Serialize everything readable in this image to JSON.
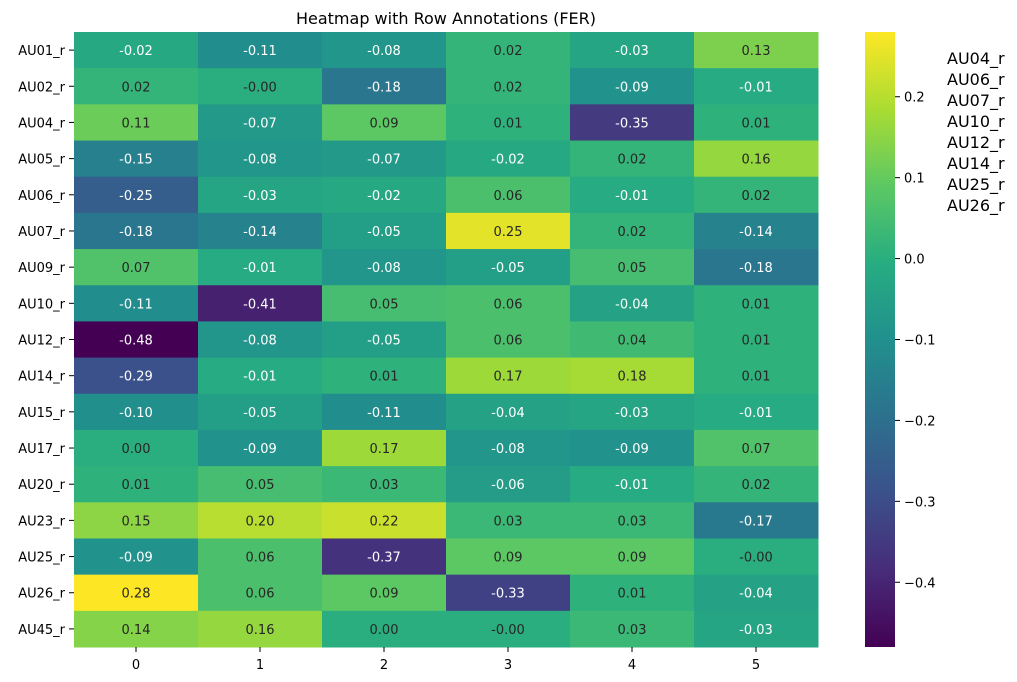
{
  "chart_data": {
    "type": "heatmap",
    "title": "Heatmap with Row Annotations (FER)",
    "xlabel": "",
    "ylabel": "",
    "x_categories": [
      "0",
      "1",
      "2",
      "3",
      "4",
      "5"
    ],
    "y_categories": [
      "AU01_r",
      "AU02_r",
      "AU04_r",
      "AU05_r",
      "AU06_r",
      "AU07_r",
      "AU09_r",
      "AU10_r",
      "AU12_r",
      "AU14_r",
      "AU15_r",
      "AU17_r",
      "AU20_r",
      "AU23_r",
      "AU25_r",
      "AU26_r",
      "AU45_r"
    ],
    "values": [
      [
        -0.02,
        -0.11,
        -0.08,
        0.02,
        -0.03,
        0.13
      ],
      [
        0.02,
        -0.0,
        -0.18,
        0.02,
        -0.09,
        -0.01
      ],
      [
        0.11,
        -0.07,
        0.09,
        0.01,
        -0.35,
        0.01
      ],
      [
        -0.15,
        -0.08,
        -0.07,
        -0.02,
        0.02,
        0.16
      ],
      [
        -0.25,
        -0.03,
        -0.02,
        0.06,
        -0.01,
        0.02
      ],
      [
        -0.18,
        -0.14,
        -0.05,
        0.25,
        0.02,
        -0.14
      ],
      [
        0.07,
        -0.01,
        -0.08,
        -0.05,
        0.05,
        -0.18
      ],
      [
        -0.11,
        -0.41,
        0.05,
        0.06,
        -0.04,
        0.01
      ],
      [
        -0.48,
        -0.08,
        -0.05,
        0.06,
        0.04,
        0.01
      ],
      [
        -0.29,
        -0.01,
        0.01,
        0.17,
        0.18,
        0.01
      ],
      [
        -0.1,
        -0.05,
        -0.11,
        -0.04,
        -0.03,
        -0.01
      ],
      [
        0.0,
        -0.09,
        0.17,
        -0.08,
        -0.09,
        0.07
      ],
      [
        0.01,
        0.05,
        0.03,
        -0.06,
        -0.01,
        0.02
      ],
      [
        0.15,
        0.2,
        0.22,
        0.03,
        0.03,
        -0.17
      ],
      [
        -0.09,
        0.06,
        -0.37,
        0.09,
        0.09,
        -0.0
      ],
      [
        0.28,
        0.06,
        0.09,
        -0.33,
        0.01,
        -0.04
      ],
      [
        0.14,
        0.16,
        0.0,
        -0.0,
        0.03,
        -0.03
      ]
    ],
    "value_labels": [
      [
        "-0.02",
        "-0.11",
        "-0.08",
        "0.02",
        "-0.03",
        "0.13"
      ],
      [
        "0.02",
        "-0.00",
        "-0.18",
        "0.02",
        "-0.09",
        "-0.01"
      ],
      [
        "0.11",
        "-0.07",
        "0.09",
        "0.01",
        "-0.35",
        "0.01"
      ],
      [
        "-0.15",
        "-0.08",
        "-0.07",
        "-0.02",
        "0.02",
        "0.16"
      ],
      [
        "-0.25",
        "-0.03",
        "-0.02",
        "0.06",
        "-0.01",
        "0.02"
      ],
      [
        "-0.18",
        "-0.14",
        "-0.05",
        "0.25",
        "0.02",
        "-0.14"
      ],
      [
        "0.07",
        "-0.01",
        "-0.08",
        "-0.05",
        "0.05",
        "-0.18"
      ],
      [
        "-0.11",
        "-0.41",
        "0.05",
        "0.06",
        "-0.04",
        "0.01"
      ],
      [
        "-0.48",
        "-0.08",
        "-0.05",
        "0.06",
        "0.04",
        "0.01"
      ],
      [
        "-0.29",
        "-0.01",
        "0.01",
        "0.17",
        "0.18",
        "0.01"
      ],
      [
        "-0.10",
        "-0.05",
        "-0.11",
        "-0.04",
        "-0.03",
        "-0.01"
      ],
      [
        "0.00",
        "-0.09",
        "0.17",
        "-0.08",
        "-0.09",
        "0.07"
      ],
      [
        "0.01",
        "0.05",
        "0.03",
        "-0.06",
        "-0.01",
        "0.02"
      ],
      [
        "0.15",
        "0.20",
        "0.22",
        "0.03",
        "0.03",
        "-0.17"
      ],
      [
        "-0.09",
        "0.06",
        "-0.37",
        "0.09",
        "0.09",
        "-0.00"
      ],
      [
        "0.28",
        "0.06",
        "0.09",
        "-0.33",
        "0.01",
        "-0.04"
      ],
      [
        "0.14",
        "0.16",
        "0.00",
        "-0.00",
        "0.03",
        "-0.03"
      ]
    ],
    "colormap": "viridis",
    "vmin": -0.48,
    "vmax": 0.28,
    "colorbar": {
      "ticks": [
        -0.4,
        -0.3,
        -0.2,
        -0.1,
        0.0,
        0.1,
        0.2
      ],
      "tick_labels": [
        "−0.4",
        "−0.3",
        "−0.2",
        "−0.1",
        "0.0",
        "0.1",
        "0.2"
      ]
    },
    "row_annotations": [
      "AU04_r",
      "AU06_r",
      "AU07_r",
      "AU10_r",
      "AU12_r",
      "AU14_r",
      "AU25_r",
      "AU26_r"
    ],
    "grid": false
  }
}
